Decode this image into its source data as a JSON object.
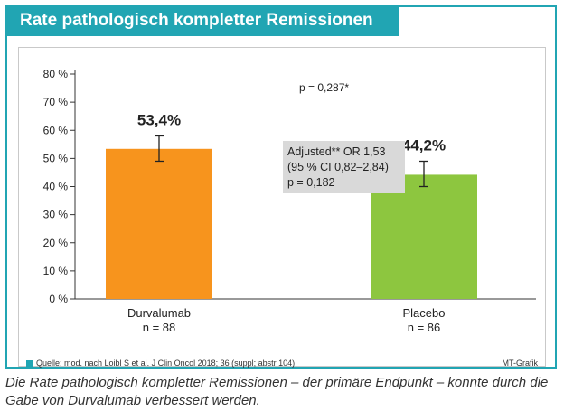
{
  "title": "Rate pathologisch kompletter Remissionen",
  "chart_data": {
    "type": "bar",
    "categories": [
      "Durvalumab",
      "Placebo"
    ],
    "category_sublabels": [
      "n = 88",
      "n = 86"
    ],
    "values": [
      53.4,
      44.2
    ],
    "value_labels": [
      "53,4%",
      "44,2%"
    ],
    "error_bars": [
      [
        49,
        58
      ],
      [
        40,
        49
      ]
    ],
    "bar_colors": [
      "#f7941d",
      "#8dc63f"
    ],
    "ylim": [
      0,
      80
    ],
    "yticks": [
      0,
      10,
      20,
      30,
      40,
      50,
      60,
      70,
      80
    ],
    "ytick_labels": [
      "0 %",
      "10 %",
      "20 %",
      "30 %",
      "40 %",
      "50 %",
      "60 %",
      "70 %",
      "80 %"
    ],
    "grid": false,
    "annotations": {
      "p_value": "p = 0,287*",
      "stats_box": [
        "Adjusted** OR 1,53",
        "(95 % CI 0,82–2,84)",
        "p = 0,182"
      ]
    }
  },
  "source": "Quelle: mod. nach Loibl S et al. J Clin Oncol 2018; 36 (suppl; abstr 104)",
  "credit": "MT-Grafik",
  "caption": "Die Rate pathologisch kompletter Remissionen – der primäre Endpunkt – konnte durch die Gabe von Durvalumab verbessert werden.",
  "colors": {
    "accent": "#21a5b3",
    "stats_box_bg": "#d9d9d9"
  }
}
